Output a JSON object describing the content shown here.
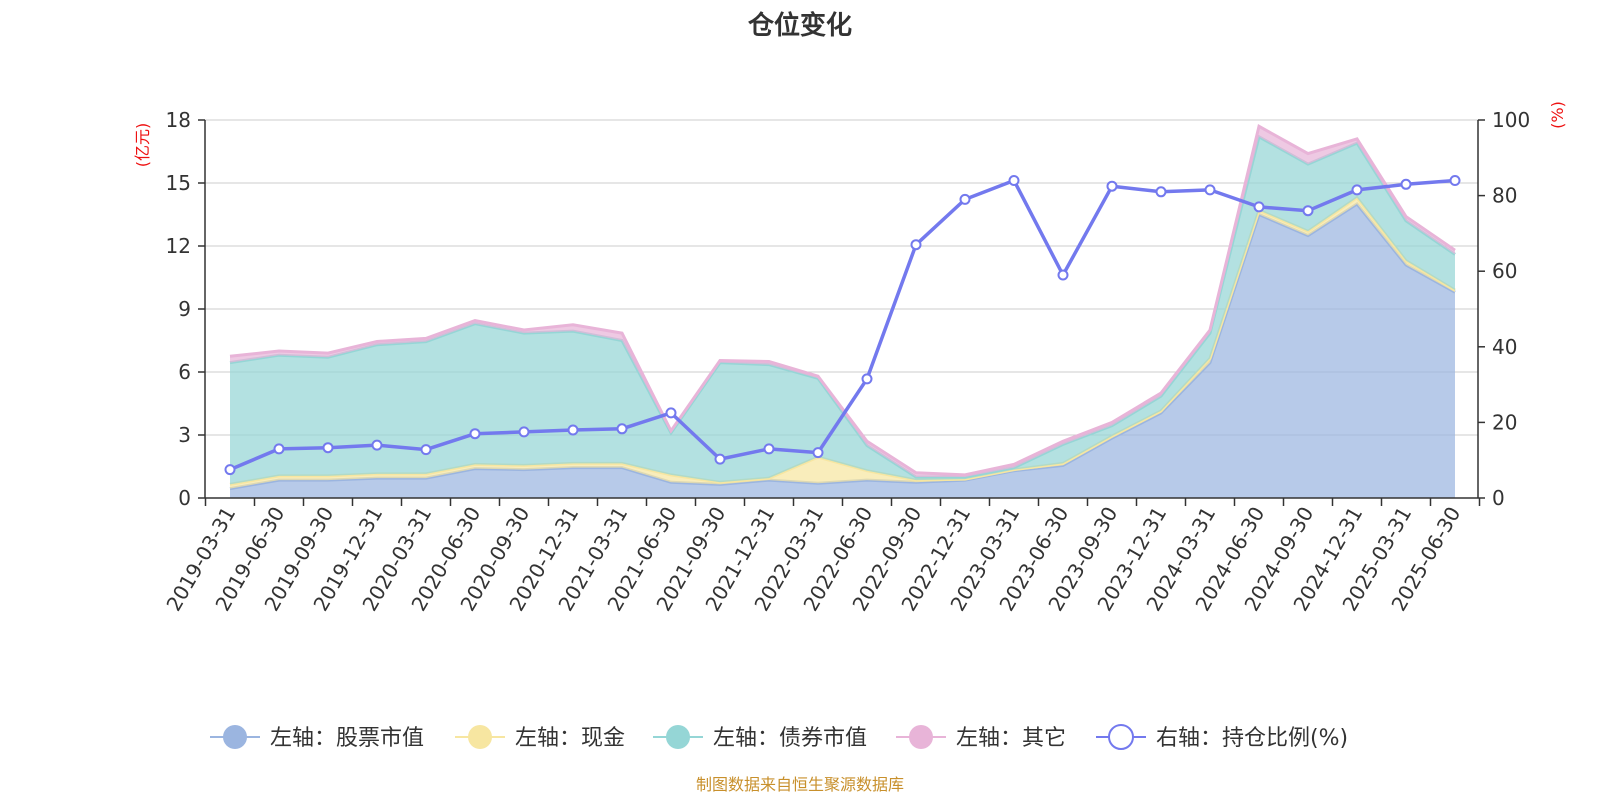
{
  "chart_data": {
    "type": "area",
    "title": "仓位变化",
    "left_axis_unit": "(亿元)",
    "right_axis_unit": "(%)",
    "left_ylim": [
      0,
      18
    ],
    "left_ticks": [
      0,
      3,
      6,
      9,
      12,
      15,
      18
    ],
    "right_ylim": [
      0,
      100
    ],
    "right_ticks": [
      0,
      20,
      40,
      60,
      80,
      100
    ],
    "grid": true,
    "legend_position": "bottom",
    "stacked": true,
    "x_tick_labels": [
      "2019-03-31",
      "2019-06-30",
      "2019-09-30",
      "2019-12-31",
      "2020-03-31",
      "2020-06-30",
      "2020-09-30",
      "2020-12-31",
      "2021-03-31",
      "2021-06-30",
      "2021-09-30",
      "2021-12-31",
      "2022-03-31",
      "2022-06-30",
      "2022-09-30",
      "2022-12-31",
      "2023-03-31",
      "2023-06-30",
      "2023-09-30",
      "2023-12-31",
      "2024-03-31",
      "2024-06-30",
      "2024-09-30",
      "2024-12-31",
      "2025-03-31",
      "2025-06-30"
    ],
    "x": [
      "2019-03-31",
      "2019-06-30",
      "2019-09-30",
      "2019-12-31",
      "2020-03-31",
      "2020-06-30",
      "2020-09-30",
      "2020-12-31",
      "2021-03-31",
      "2021-06-30",
      "2021-09-30",
      "2021-12-31",
      "2022-03-31",
      "2022-06-30",
      "2022-09-30",
      "2022-12-31",
      "2023-03-31",
      "2023-06-30",
      "2023-09-30",
      "2023-12-31",
      "2024-03-31",
      "2024-06-30",
      "2024-09-30",
      "2024-12-31",
      "2025-03-31",
      "2025-06-30"
    ],
    "series": [
      {
        "name": "左轴：股票市值",
        "axis": "left",
        "color": "#9bb5e0",
        "values": [
          0.45,
          0.85,
          0.85,
          0.95,
          0.95,
          1.4,
          1.35,
          1.45,
          1.45,
          0.75,
          0.65,
          0.85,
          0.7,
          0.85,
          0.75,
          0.85,
          1.3,
          1.55,
          2.85,
          4.05,
          6.45,
          13.5,
          12.5,
          14.0,
          11.1,
          9.8
        ]
      },
      {
        "name": "左轴：现金",
        "axis": "left",
        "color": "#f7e6a1",
        "values": [
          0.2,
          0.2,
          0.2,
          0.2,
          0.2,
          0.2,
          0.2,
          0.2,
          0.2,
          0.35,
          0.1,
          0.1,
          1.25,
          0.45,
          0.1,
          0.05,
          0.05,
          0.1,
          0.1,
          0.1,
          0.2,
          0.2,
          0.2,
          0.3,
          0.2,
          0.1
        ]
      },
      {
        "name": "左轴：债券市值",
        "axis": "left",
        "color": "#95d6d6",
        "values": [
          5.8,
          5.75,
          5.65,
          6.15,
          6.3,
          6.7,
          6.3,
          6.3,
          5.85,
          2.0,
          5.7,
          5.4,
          3.75,
          1.2,
          0.15,
          0.1,
          0.1,
          0.9,
          0.5,
          0.7,
          1.2,
          3.5,
          3.2,
          2.6,
          1.9,
          1.7
        ]
      },
      {
        "name": "左轴：其它",
        "axis": "left",
        "color": "#e8b4d8",
        "values": [
          0.3,
          0.2,
          0.2,
          0.15,
          0.15,
          0.15,
          0.15,
          0.3,
          0.35,
          0.1,
          0.1,
          0.15,
          0.1,
          0.2,
          0.2,
          0.1,
          0.15,
          0.15,
          0.15,
          0.15,
          0.15,
          0.5,
          0.5,
          0.2,
          0.2,
          0.2
        ]
      },
      {
        "name": "右轴：持仓比例(%)",
        "axis": "right",
        "type": "line",
        "color": "#7379ee",
        "values": [
          7.5,
          13,
          13.3,
          14,
          12.8,
          17,
          17.5,
          18,
          18.3,
          22.5,
          10.3,
          13,
          12,
          31.5,
          67,
          79,
          84,
          59,
          82.5,
          81,
          81.5,
          77,
          76,
          81.5,
          83,
          84
        ]
      }
    ]
  },
  "footer": {
    "source": "制图数据来自恒生聚源数据库",
    "source_color": "#c8902c"
  },
  "colors": {
    "unit_color": "#ee1111",
    "axis_color": "#333333",
    "grid_color": "#cccccc"
  }
}
